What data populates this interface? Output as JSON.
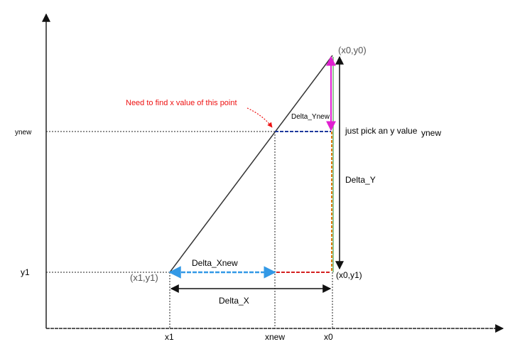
{
  "labels": {
    "point_top": "(x0,y0)",
    "point_left": "(x1,y1)",
    "point_corner": "(x0,y1)",
    "annotation": "Need to find x value of this point",
    "delta_ynew": "Delta_Ynew",
    "pick_y": "just pick an y value",
    "ynew_right": "ynew",
    "delta_y": "Delta_Y",
    "delta_xnew": "Delta_Xnew",
    "delta_x": "Delta_X"
  },
  "axis_labels": {
    "y_ynew": "ynew",
    "y_y1": "y1",
    "x_x1": "x1",
    "x_xnew": "xnew",
    "x_x0": "x0"
  },
  "colors": {
    "axis": "#222222",
    "hypotenuse": "#333333",
    "guide": "#222222",
    "blue_arrow": "#3399e6",
    "navy_dash": "#1f3a9e",
    "red_dash": "#d42020",
    "orange_line": "#e07b10",
    "green_line": "#6bb26b",
    "magenta_arrow": "#e020d0",
    "annotation": "#ee1111"
  }
}
